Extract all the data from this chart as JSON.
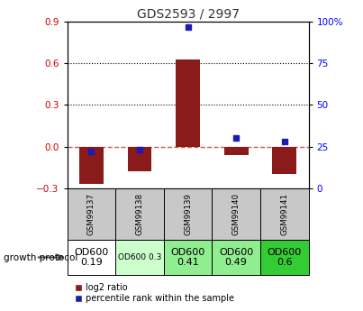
{
  "title": "GDS2593 / 2997",
  "samples": [
    "GSM99137",
    "GSM99138",
    "GSM99139",
    "GSM99140",
    "GSM99141"
  ],
  "log2_ratios": [
    -0.27,
    -0.18,
    0.63,
    -0.06,
    -0.2
  ],
  "percentile_ranks": [
    22,
    23,
    97,
    30,
    28
  ],
  "left_ylim": [
    -0.3,
    0.9
  ],
  "right_ylim": [
    0,
    100
  ],
  "left_yticks": [
    -0.3,
    0.0,
    0.3,
    0.6,
    0.9
  ],
  "right_yticks": [
    0,
    25,
    50,
    75,
    100
  ],
  "bar_color": "#8B1A1A",
  "dot_color": "#1C1CB4",
  "zero_line_color": "#CD5C5C",
  "sample_bg_color": "#C8C8C8",
  "protocol_labels": [
    "OD600\n0.19",
    "OD600 0.3",
    "OD600\n0.41",
    "OD600\n0.49",
    "OD600\n0.6"
  ],
  "protocol_bg_colors": [
    "#FFFFFF",
    "#CCFFCC",
    "#90EE90",
    "#90EE90",
    "#33CC33"
  ],
  "protocol_text_sizes": [
    8,
    6.5,
    8,
    8,
    8
  ],
  "growth_protocol_label": "growth protocol",
  "legend_log2": "log2 ratio",
  "legend_pct": "percentile rank within the sample"
}
